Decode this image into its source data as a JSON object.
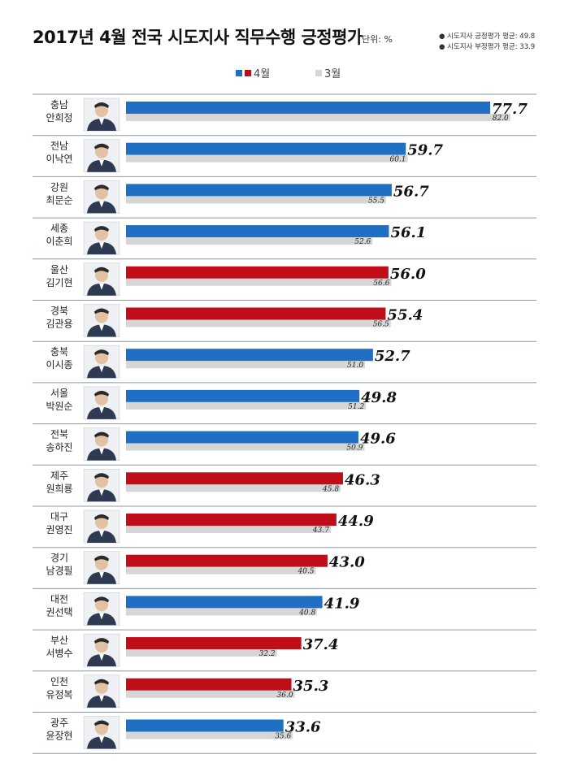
{
  "title": "2017년 4월 전국 시도지사 직무수행 긍정평가",
  "unit": "단위: %",
  "averages": {
    "positive": "● 시도지사 긍정평가 평균: 49.8",
    "negative": "● 시도지사 부정평가 평균: 33.9"
  },
  "legend": {
    "april": "4월",
    "march": "3월"
  },
  "colors": {
    "blue": "#1f6fc5",
    "red": "#bf0d1a",
    "gray": "#d6d6d6",
    "border": "#8d99a6"
  },
  "chart_data": {
    "type": "bar",
    "orientation": "horizontal",
    "title": "2017년 4월 전국 시도지사 직무수행 긍정평가",
    "unit": "단위: %",
    "xlim": [
      0,
      100
    ],
    "grid": false,
    "legend_position": "top-center",
    "rows": [
      {
        "region": "충남",
        "name": "안희정",
        "april": 77.7,
        "march": 82.0,
        "color": "blue"
      },
      {
        "region": "전남",
        "name": "이낙연",
        "april": 59.7,
        "march": 60.1,
        "color": "blue"
      },
      {
        "region": "강원",
        "name": "최문순",
        "april": 56.7,
        "march": 55.5,
        "color": "blue"
      },
      {
        "region": "세종",
        "name": "이춘희",
        "april": 56.1,
        "march": 52.6,
        "color": "blue"
      },
      {
        "region": "울산",
        "name": "김기현",
        "april": 56.0,
        "march": 56.6,
        "color": "red"
      },
      {
        "region": "경북",
        "name": "김관용",
        "april": 55.4,
        "march": 56.5,
        "color": "red"
      },
      {
        "region": "충북",
        "name": "이시종",
        "april": 52.7,
        "march": 51.0,
        "color": "blue"
      },
      {
        "region": "서울",
        "name": "박원순",
        "april": 49.8,
        "march": 51.2,
        "color": "blue"
      },
      {
        "region": "전북",
        "name": "송하진",
        "april": 49.6,
        "march": 50.9,
        "color": "blue"
      },
      {
        "region": "제주",
        "name": "원희룡",
        "april": 46.3,
        "march": 45.8,
        "color": "red"
      },
      {
        "region": "대구",
        "name": "권영진",
        "april": 44.9,
        "march": 43.7,
        "color": "red"
      },
      {
        "region": "경기",
        "name": "남경필",
        "april": 43.0,
        "march": 40.5,
        "color": "red"
      },
      {
        "region": "대전",
        "name": "권선택",
        "april": 41.9,
        "march": 40.8,
        "color": "blue"
      },
      {
        "region": "부산",
        "name": "서병수",
        "april": 37.4,
        "march": 32.2,
        "color": "red"
      },
      {
        "region": "인천",
        "name": "유정복",
        "april": 35.3,
        "march": 36.0,
        "color": "red"
      },
      {
        "region": "광주",
        "name": "윤장현",
        "april": 33.6,
        "march": 35.6,
        "color": "blue"
      }
    ]
  }
}
